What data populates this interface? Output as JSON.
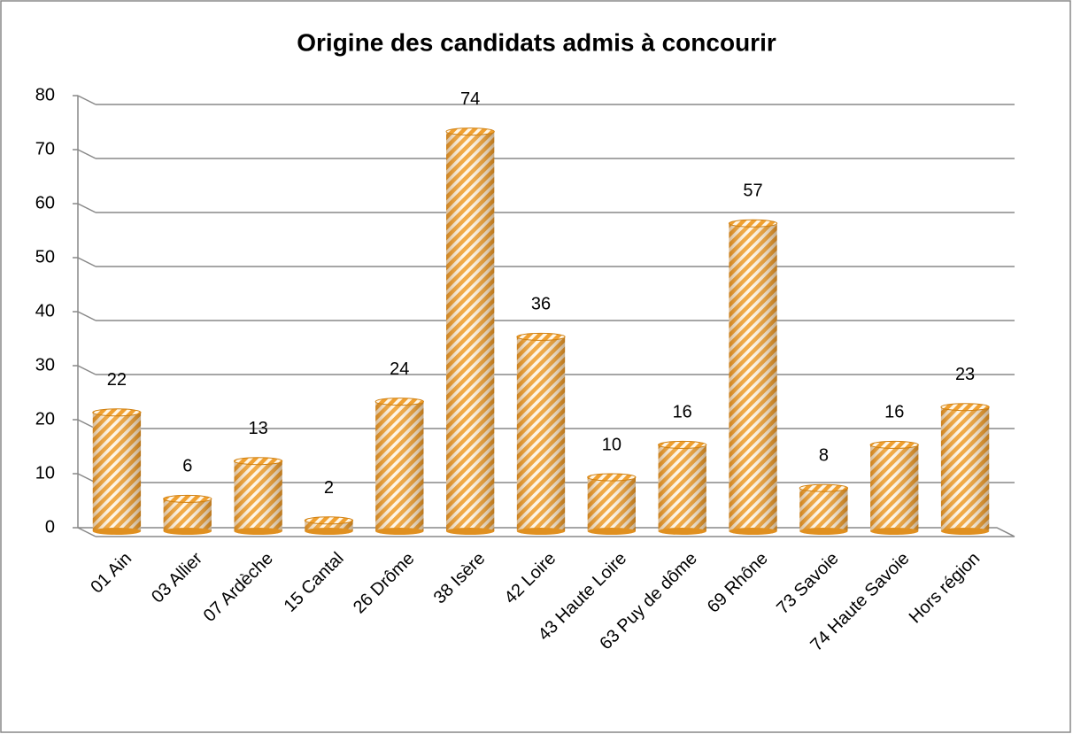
{
  "chart_data": {
    "type": "bar",
    "title": "Origine des candidats admis à concourir",
    "categories": [
      "01 Ain",
      "03 Allier",
      "07 Ardèche",
      "15 Cantal",
      "26 Drôme",
      "38 Isère",
      "42 Loire",
      "43 Haute Loire",
      "63 Puy de dôme",
      "69 Rhône",
      "73 Savoie",
      "74 Haute Savoie",
      "Hors région"
    ],
    "values": [
      22,
      6,
      13,
      2,
      24,
      74,
      36,
      10,
      16,
      57,
      8,
      16,
      23
    ],
    "color": "#f0a030",
    "ylim": [
      0,
      80
    ],
    "yticks": [
      0,
      10,
      20,
      30,
      40,
      50,
      60,
      70,
      80
    ],
    "grid": true
  }
}
